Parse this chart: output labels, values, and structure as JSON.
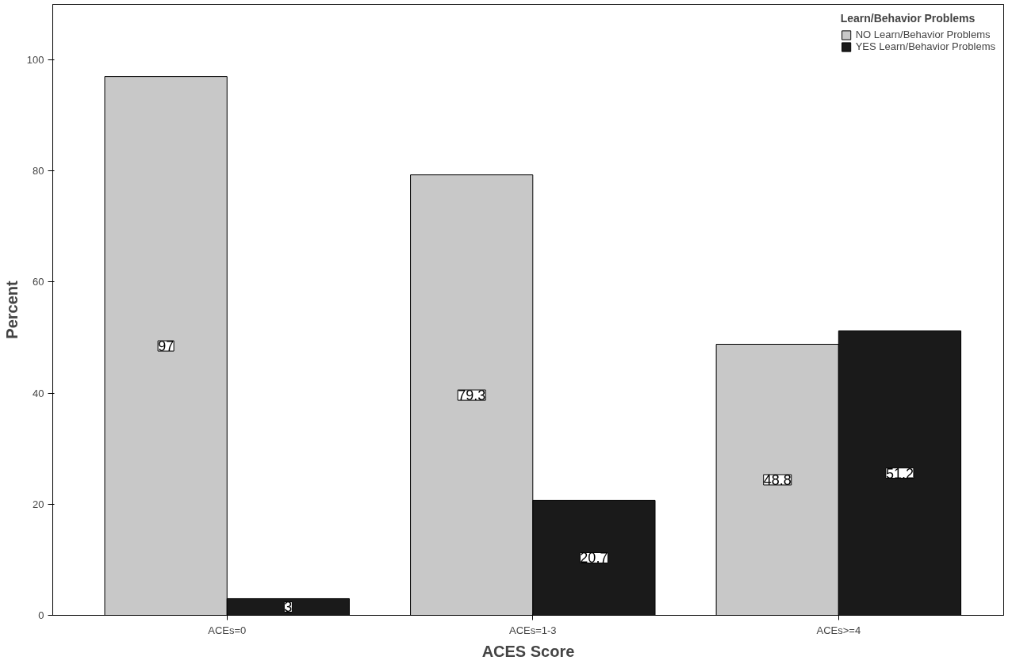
{
  "chart_data": {
    "type": "bar",
    "xlabel": "ACES Score",
    "ylabel": "Percent",
    "legend_title": "Learn/Behavior Problems",
    "categories": [
      "ACEs=0",
      "ACEs=1-3",
      "ACEs>=4"
    ],
    "series": [
      {
        "name": "NO Learn/Behavior Problems",
        "color": "#c8c8c8",
        "values": [
          97,
          79.3,
          48.8
        ]
      },
      {
        "name": "YES Learn/Behavior Problems",
        "color": "#1a1a1a",
        "values": [
          3,
          20.7,
          51.2
        ]
      }
    ],
    "ylim": [
      0,
      110
    ],
    "yticks": [
      0,
      20,
      40,
      60,
      80,
      100
    ],
    "grid": false,
    "legend": "top right",
    "data_labels": true
  }
}
